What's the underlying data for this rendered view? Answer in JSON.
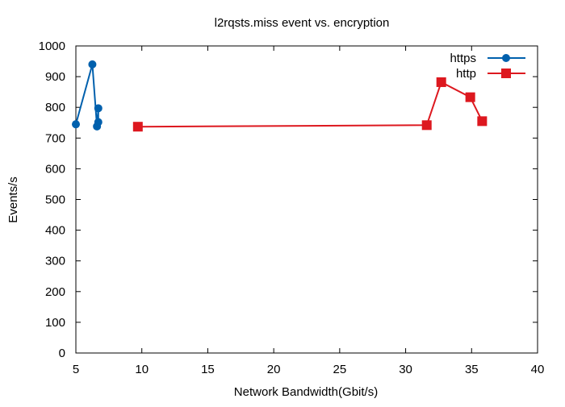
{
  "chart_data": {
    "type": "line",
    "title": "l2rqsts.miss event vs. encryption",
    "xlabel": "Network Bandwidth(Gbit/s)",
    "ylabel": "Events/s",
    "xlim": [
      5,
      40
    ],
    "ylim": [
      0,
      1000
    ],
    "xticks": [
      "5",
      "10",
      "15",
      "20",
      "25",
      "30",
      "35",
      "40"
    ],
    "yticks": [
      "0",
      "100",
      "200",
      "300",
      "400",
      "500",
      "600",
      "700",
      "800",
      "900",
      "1000"
    ],
    "grid": false,
    "legend_position": "top-right",
    "series": [
      {
        "name": "https",
        "color": "#0060ad",
        "marker": "circle",
        "points": [
          {
            "x": 5.0,
            "y": 745
          },
          {
            "x": 6.25,
            "y": 940
          },
          {
            "x": 6.6,
            "y": 738
          },
          {
            "x": 6.7,
            "y": 797
          },
          {
            "x": 6.7,
            "y": 752
          }
        ]
      },
      {
        "name": "http",
        "color": "#dd181f",
        "marker": "square",
        "points": [
          {
            "x": 9.7,
            "y": 737
          },
          {
            "x": 31.6,
            "y": 742
          },
          {
            "x": 32.7,
            "y": 882
          },
          {
            "x": 34.9,
            "y": 833
          },
          {
            "x": 35.8,
            "y": 755
          }
        ]
      }
    ]
  }
}
